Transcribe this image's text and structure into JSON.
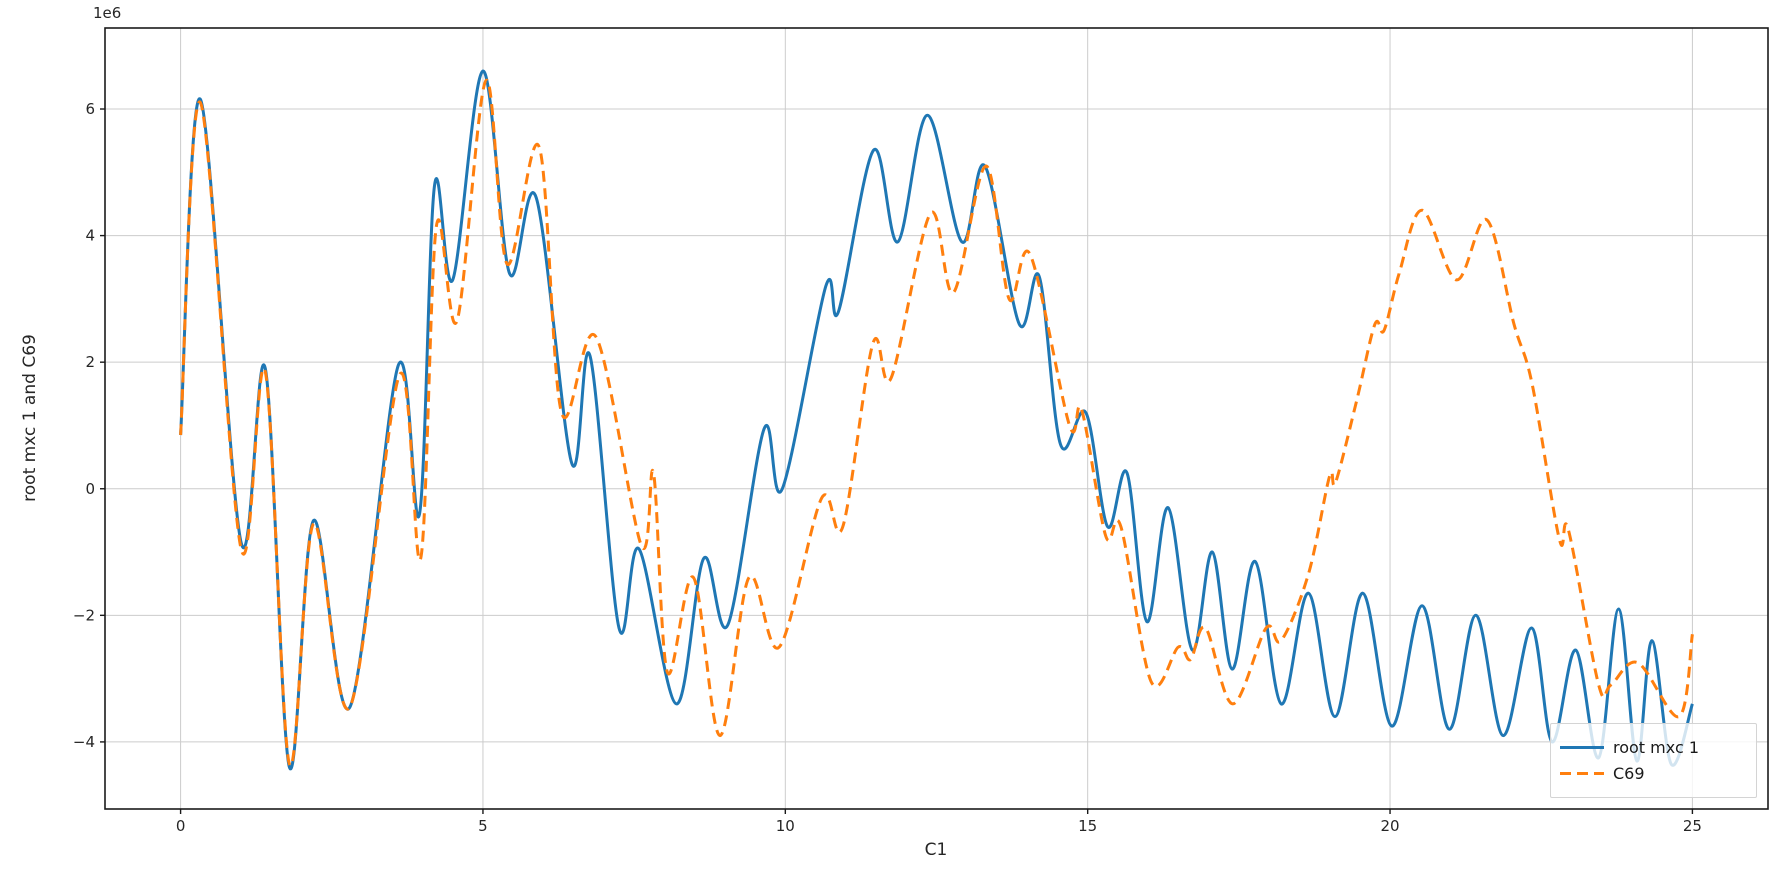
{
  "figure": {
    "background": "#ffffff"
  },
  "chart_data": {
    "type": "line",
    "title": "",
    "xlabel": "C1",
    "ylabel": "root mxc 1 and C69",
    "y_offset_multiplier": "1e6",
    "xlim": [
      -1.25,
      26.25
    ],
    "ylim": [
      -5.06,
      7.28
    ],
    "grid": true,
    "grid_color": "#cccccc",
    "axis_color": "#1a1a1a",
    "x_ticks": [
      0,
      5,
      10,
      15,
      20,
      25
    ],
    "x_tick_labels": [
      "0",
      "5",
      "10",
      "15",
      "20",
      "25"
    ],
    "y_ticks": [
      6,
      4,
      2,
      0,
      -2,
      -4
    ],
    "y_tick_labels": [
      "6",
      "4",
      "2",
      "0",
      "−2",
      "−4"
    ],
    "legend": {
      "location": "lower right",
      "entries": [
        {
          "label": "root mxc 1",
          "color": "#1f77b4",
          "style": "solid"
        },
        {
          "label": "C69",
          "color": "#ff7f0e",
          "style": "dashed"
        }
      ]
    },
    "series": [
      {
        "name": "root mxc 1",
        "color": "#1f77b4",
        "style": "solid",
        "units": "1e6",
        "points": [
          [
            0.0,
            0.85
          ],
          [
            0.33,
            6.15
          ],
          [
            1.0,
            -0.85
          ],
          [
            1.4,
            1.9
          ],
          [
            1.8,
            -4.4
          ],
          [
            2.2,
            -0.5
          ],
          [
            2.8,
            -3.45
          ],
          [
            3.6,
            1.95
          ],
          [
            3.95,
            -0.4
          ],
          [
            4.2,
            4.8
          ],
          [
            4.5,
            3.3
          ],
          [
            5.0,
            6.6
          ],
          [
            5.44,
            3.4
          ],
          [
            5.88,
            4.6
          ],
          [
            6.47,
            0.4
          ],
          [
            6.77,
            2.1
          ],
          [
            7.25,
            -2.2
          ],
          [
            7.58,
            -0.95
          ],
          [
            8.2,
            -3.4
          ],
          [
            8.65,
            -1.1
          ],
          [
            9.05,
            -2.15
          ],
          [
            9.65,
            0.95
          ],
          [
            9.95,
            0.0
          ],
          [
            10.67,
            3.2
          ],
          [
            10.88,
            2.8
          ],
          [
            11.46,
            5.35
          ],
          [
            11.86,
            3.9
          ],
          [
            12.35,
            5.9
          ],
          [
            12.92,
            3.9
          ],
          [
            13.3,
            5.1
          ],
          [
            13.87,
            2.6
          ],
          [
            14.2,
            3.35
          ],
          [
            14.55,
            0.7
          ],
          [
            14.97,
            1.2
          ],
          [
            15.33,
            -0.6
          ],
          [
            15.65,
            0.25
          ],
          [
            15.98,
            -2.1
          ],
          [
            16.33,
            -0.3
          ],
          [
            16.73,
            -2.55
          ],
          [
            17.06,
            -1.0
          ],
          [
            17.39,
            -2.85
          ],
          [
            17.77,
            -1.15
          ],
          [
            18.2,
            -3.4
          ],
          [
            18.65,
            -1.65
          ],
          [
            19.09,
            -3.6
          ],
          [
            19.55,
            -1.65
          ],
          [
            20.03,
            -3.75
          ],
          [
            20.53,
            -1.85
          ],
          [
            20.98,
            -3.8
          ],
          [
            21.42,
            -2.0
          ],
          [
            21.87,
            -3.9
          ],
          [
            22.34,
            -2.2
          ],
          [
            22.68,
            -4.0
          ],
          [
            23.07,
            -2.55
          ],
          [
            23.45,
            -4.25
          ],
          [
            23.78,
            -1.9
          ],
          [
            24.08,
            -4.3
          ],
          [
            24.33,
            -2.4
          ],
          [
            24.65,
            -4.35
          ],
          [
            25.0,
            -3.4
          ]
        ]
      },
      {
        "name": "C69",
        "color": "#ff7f0e",
        "style": "dashed",
        "units": "1e6",
        "points": [
          [
            0.0,
            0.85
          ],
          [
            0.33,
            6.1
          ],
          [
            1.0,
            -0.95
          ],
          [
            1.4,
            1.85
          ],
          [
            1.8,
            -4.35
          ],
          [
            2.2,
            -0.55
          ],
          [
            2.8,
            -3.45
          ],
          [
            3.62,
            1.8
          ],
          [
            3.97,
            -1.1
          ],
          [
            4.23,
            4.15
          ],
          [
            4.57,
            2.65
          ],
          [
            5.05,
            6.45
          ],
          [
            5.4,
            3.55
          ],
          [
            5.93,
            5.4
          ],
          [
            6.3,
            1.2
          ],
          [
            6.87,
            2.4
          ],
          [
            7.62,
            -0.9
          ],
          [
            7.82,
            0.25
          ],
          [
            8.05,
            -2.9
          ],
          [
            8.48,
            -1.4
          ],
          [
            8.92,
            -3.9
          ],
          [
            9.4,
            -1.4
          ],
          [
            9.9,
            -2.5
          ],
          [
            10.6,
            -0.15
          ],
          [
            10.95,
            -0.6
          ],
          [
            11.45,
            2.3
          ],
          [
            11.75,
            1.75
          ],
          [
            12.4,
            4.35
          ],
          [
            12.78,
            3.1
          ],
          [
            13.32,
            5.1
          ],
          [
            13.7,
            3.0
          ],
          [
            14.05,
            3.7
          ],
          [
            14.7,
            1.0
          ],
          [
            14.9,
            1.25
          ],
          [
            15.3,
            -0.75
          ],
          [
            15.55,
            -0.6
          ],
          [
            16.05,
            -3.05
          ],
          [
            16.5,
            -2.5
          ],
          [
            16.7,
            -2.7
          ],
          [
            16.95,
            -2.2
          ],
          [
            17.4,
            -3.4
          ],
          [
            17.95,
            -2.2
          ],
          [
            18.2,
            -2.4
          ],
          [
            18.65,
            -1.35
          ],
          [
            19.0,
            0.2
          ],
          [
            19.1,
            0.1
          ],
          [
            19.45,
            1.4
          ],
          [
            19.75,
            2.6
          ],
          [
            19.9,
            2.5
          ],
          [
            20.15,
            3.4
          ],
          [
            20.53,
            4.4
          ],
          [
            21.1,
            3.3
          ],
          [
            21.6,
            4.25
          ],
          [
            22.05,
            2.6
          ],
          [
            22.35,
            1.65
          ],
          [
            22.8,
            -0.8
          ],
          [
            22.95,
            -0.65
          ],
          [
            23.45,
            -3.1
          ],
          [
            23.65,
            -3.1
          ],
          [
            24.1,
            -2.75
          ],
          [
            24.78,
            -3.6
          ],
          [
            25.0,
            -2.3
          ]
        ]
      }
    ]
  }
}
